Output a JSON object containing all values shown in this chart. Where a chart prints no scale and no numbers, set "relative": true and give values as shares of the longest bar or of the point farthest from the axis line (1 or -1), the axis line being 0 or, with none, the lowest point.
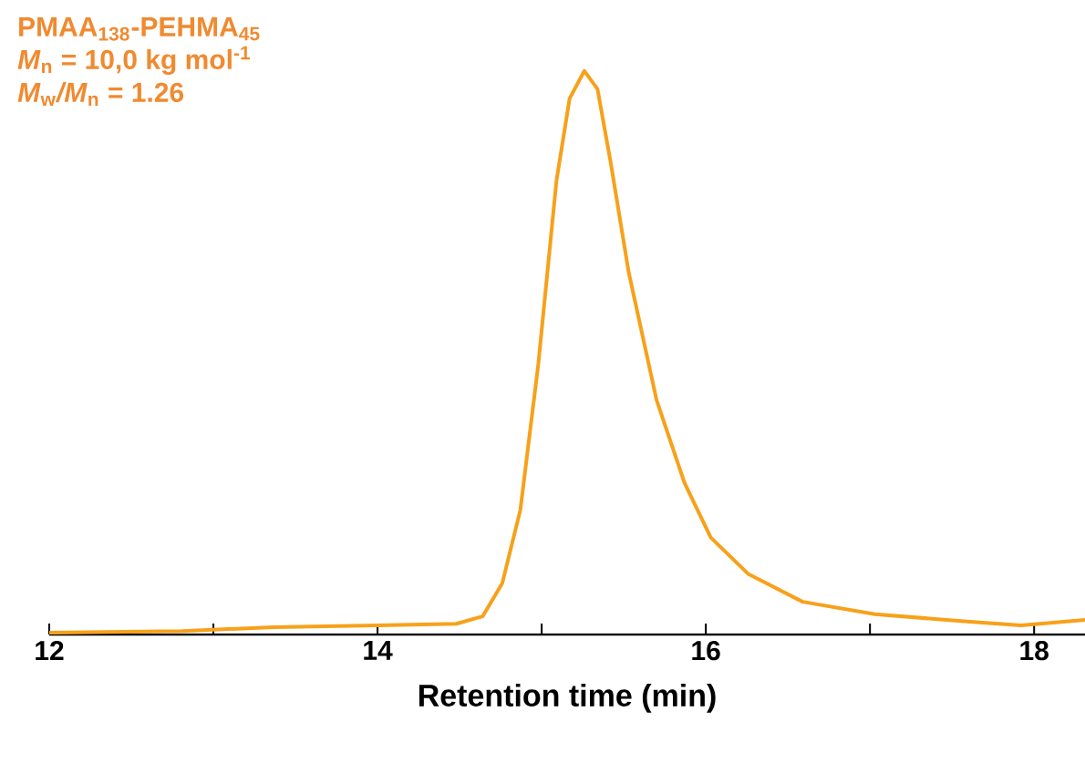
{
  "chart_data": {
    "type": "line",
    "xlabel": "Retention time (min)",
    "relative": true,
    "annotations": [
      "PMAA$_{138}$-PEHMA$_{45}$",
      "*M*$_{n}$ = 10,0 kg mol$^{-1}$",
      "*M*$_{w}$*/M*$_{n}$ = 1.26"
    ],
    "xlim": [
      12,
      18.31
    ],
    "xticks": [
      12,
      {
        "value": 13,
        "label": null
      },
      14,
      {
        "value": 15,
        "label": null
      },
      16,
      {
        "value": 17,
        "label": null
      },
      18
    ],
    "grid": false,
    "marker": "none",
    "line_style": "solid",
    "x": [
      12.0,
      12.81,
      13.37,
      14.0,
      14.48,
      14.64,
      14.76,
      14.87,
      14.98,
      15.09,
      15.17,
      15.26,
      15.34,
      15.42,
      15.53,
      15.7,
      15.87,
      16.03,
      16.26,
      16.59,
      17.03,
      17.59,
      17.92,
      18.31
    ],
    "series": [
      {
        "color": "#f7a11a",
        "values": [
          0.003,
          0.006,
          0.013,
          0.016,
          0.019,
          0.032,
          0.091,
          0.221,
          0.481,
          0.805,
          0.951,
          1.0,
          0.968,
          0.838,
          0.643,
          0.416,
          0.269,
          0.172,
          0.107,
          0.058,
          0.036,
          0.023,
          0.016,
          0.026
        ]
      }
    ]
  }
}
